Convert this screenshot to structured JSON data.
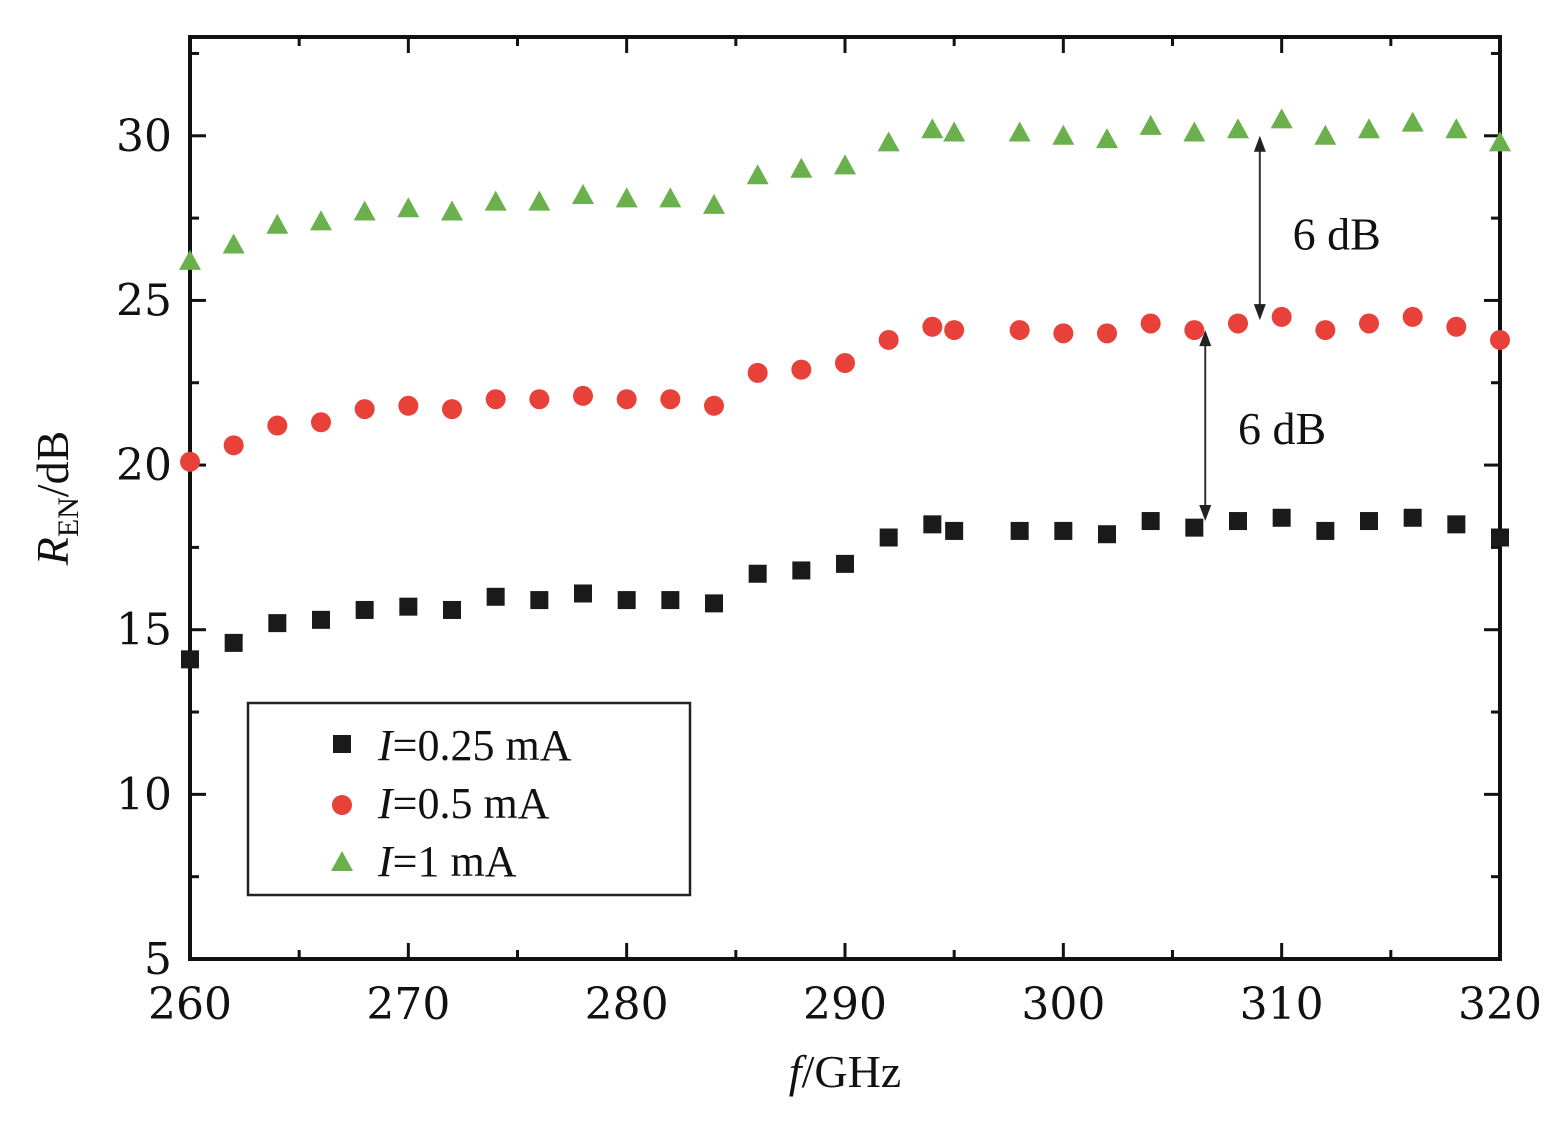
{
  "chart_data": {
    "type": "scatter",
    "xlabel_italic": "f",
    "xlabel_rest": "/GHz",
    "ylabel_italic": "R",
    "ylabel_sub": "EN",
    "ylabel_rest": "/dB",
    "xlim": [
      260,
      320
    ],
    "ylim": [
      5,
      33
    ],
    "xticks": [
      260,
      270,
      280,
      290,
      300,
      310,
      320
    ],
    "yticks": [
      5,
      10,
      15,
      20,
      25,
      30
    ],
    "legend_position": "bottom-left",
    "series": [
      {
        "name": "=0.25 mA",
        "name_italic": "I",
        "marker": "square",
        "color": "#1a1a1a",
        "x": [
          260,
          262,
          264,
          266,
          268,
          270,
          272,
          274,
          276,
          278,
          280,
          282,
          284,
          286,
          288,
          290,
          292,
          294,
          295,
          298,
          300,
          302,
          304,
          306,
          308,
          310,
          312,
          314,
          316,
          318,
          320
        ],
        "y": [
          14.1,
          14.6,
          15.2,
          15.3,
          15.6,
          15.7,
          15.6,
          16.0,
          15.9,
          16.1,
          15.9,
          15.9,
          15.8,
          16.7,
          16.8,
          17.0,
          17.8,
          18.2,
          18.0,
          18.0,
          18.0,
          17.9,
          18.3,
          18.1,
          18.3,
          18.4,
          18.0,
          18.3,
          18.4,
          18.2,
          17.8
        ]
      },
      {
        "name": "=0.5 mA",
        "name_italic": "I",
        "marker": "circle",
        "color": "#e8413a",
        "x": [
          260,
          262,
          264,
          266,
          268,
          270,
          272,
          274,
          276,
          278,
          280,
          282,
          284,
          286,
          288,
          290,
          292,
          294,
          295,
          298,
          300,
          302,
          304,
          306,
          308,
          310,
          312,
          314,
          316,
          318,
          320
        ],
        "y": [
          20.1,
          20.6,
          21.2,
          21.3,
          21.7,
          21.8,
          21.7,
          22.0,
          22.0,
          22.1,
          22.0,
          22.0,
          21.8,
          22.8,
          22.9,
          23.1,
          23.8,
          24.2,
          24.1,
          24.1,
          24.0,
          24.0,
          24.3,
          24.1,
          24.3,
          24.5,
          24.1,
          24.3,
          24.5,
          24.2,
          23.8
        ]
      },
      {
        "name": "=1 mA",
        "name_italic": "I",
        "marker": "triangle",
        "color": "#6ab04c",
        "x": [
          260,
          262,
          264,
          266,
          268,
          270,
          272,
          274,
          276,
          278,
          280,
          282,
          284,
          286,
          288,
          290,
          292,
          294,
          295,
          298,
          300,
          302,
          304,
          306,
          308,
          310,
          312,
          314,
          316,
          318,
          320
        ],
        "y": [
          26.2,
          26.7,
          27.3,
          27.4,
          27.7,
          27.8,
          27.7,
          28.0,
          28.0,
          28.2,
          28.1,
          28.1,
          27.9,
          28.8,
          29.0,
          29.1,
          29.8,
          30.2,
          30.1,
          30.1,
          30.0,
          29.9,
          30.3,
          30.1,
          30.2,
          30.5,
          30.0,
          30.2,
          30.4,
          30.2,
          29.8
        ]
      }
    ],
    "annotations": [
      {
        "text": "6 dB",
        "x": 309,
        "y_from": 24.4,
        "y_to": 30.0,
        "label_x": 310.5,
        "label_y": 27.0
      },
      {
        "text": "6 dB",
        "x": 306.5,
        "y_from": 18.3,
        "y_to": 24.1,
        "label_x": 308,
        "label_y": 21.1
      }
    ]
  }
}
